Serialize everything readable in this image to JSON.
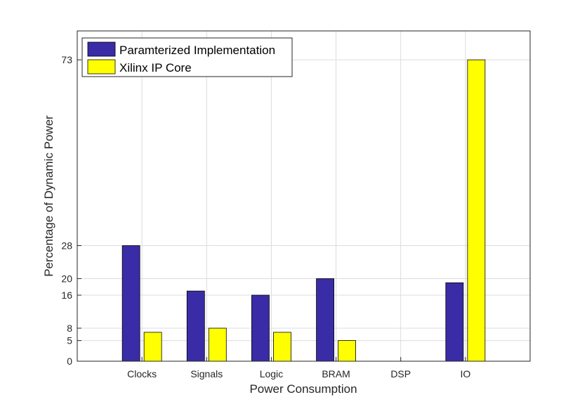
{
  "chart_data": {
    "type": "bar",
    "title": "",
    "xlabel": "Power Consumption",
    "ylabel": "Percentage of Dynamic Power",
    "categories": [
      "Clocks",
      "Signals",
      "Logic",
      "BRAM",
      "DSP",
      "IO"
    ],
    "series": [
      {
        "name": "Paramterized Implementation",
        "color": "#3a2ca6",
        "values": [
          28,
          17,
          16,
          20,
          0,
          19
        ]
      },
      {
        "name": "Xilinx IP Core",
        "color": "#ffff00",
        "values": [
          7,
          8,
          7,
          5,
          0,
          73
        ]
      }
    ],
    "yticks": [
      0,
      5,
      8,
      16,
      20,
      28,
      73
    ],
    "ylim": [
      0,
      80
    ],
    "grid": true,
    "legend_position": "top-left"
  }
}
